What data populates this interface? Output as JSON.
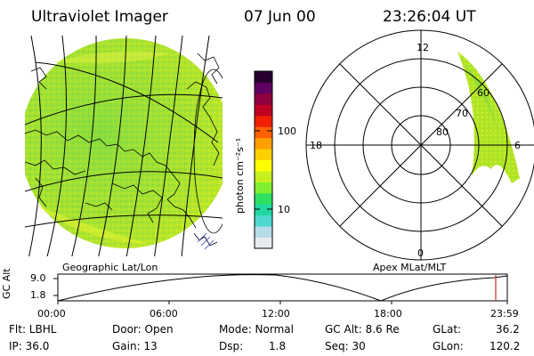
{
  "header": {
    "instrument": "Ultraviolet Imager",
    "date": "07 Jun 00",
    "time": "23:26:04 UT"
  },
  "geo_panel": {
    "caption": "Geographic Lat/Lon"
  },
  "polar_panel": {
    "caption": "Apex MLat/MLT",
    "mlt_labels": {
      "top": "12",
      "left": "18",
      "right": "6",
      "bottom": "0"
    },
    "lat_labels": [
      "60",
      "70",
      "80"
    ]
  },
  "colorbar": {
    "unit": "photon cm⁻²s⁻¹",
    "tick_labels": [
      "100",
      "10"
    ],
    "colors": [
      "#e8ecf0",
      "#b8dce8",
      "#4fd8d0",
      "#20d8a0",
      "#30e060",
      "#80f030",
      "#c8f020",
      "#ffff00",
      "#ffd000",
      "#ffa000",
      "#ff6000",
      "#f02000",
      "#c00020",
      "#900040",
      "#600060",
      "#280030"
    ]
  },
  "timeline": {
    "axis_label": "GC Alt",
    "y_ticks": [
      "9.0",
      "1.8"
    ],
    "x_ticks": [
      "00:00",
      "06:00",
      "12:00",
      "18:00",
      "23:59"
    ],
    "marker_color": "#d03020"
  },
  "info": {
    "flt": "Flt: LBHL",
    "ip": "IP: 36.0",
    "door": "Door: Open",
    "gain": "Gain: 13",
    "mode": "Mode: Normal",
    "dsp_label": "Dsp:",
    "dsp_value": "1.8",
    "gcalt": "GC Alt: 8.6 Re",
    "seq": "Seq: 30",
    "glat_label": "GLat:",
    "glat_value": "36.2",
    "glon_label": "GLon:",
    "glon_value": "120.2"
  }
}
